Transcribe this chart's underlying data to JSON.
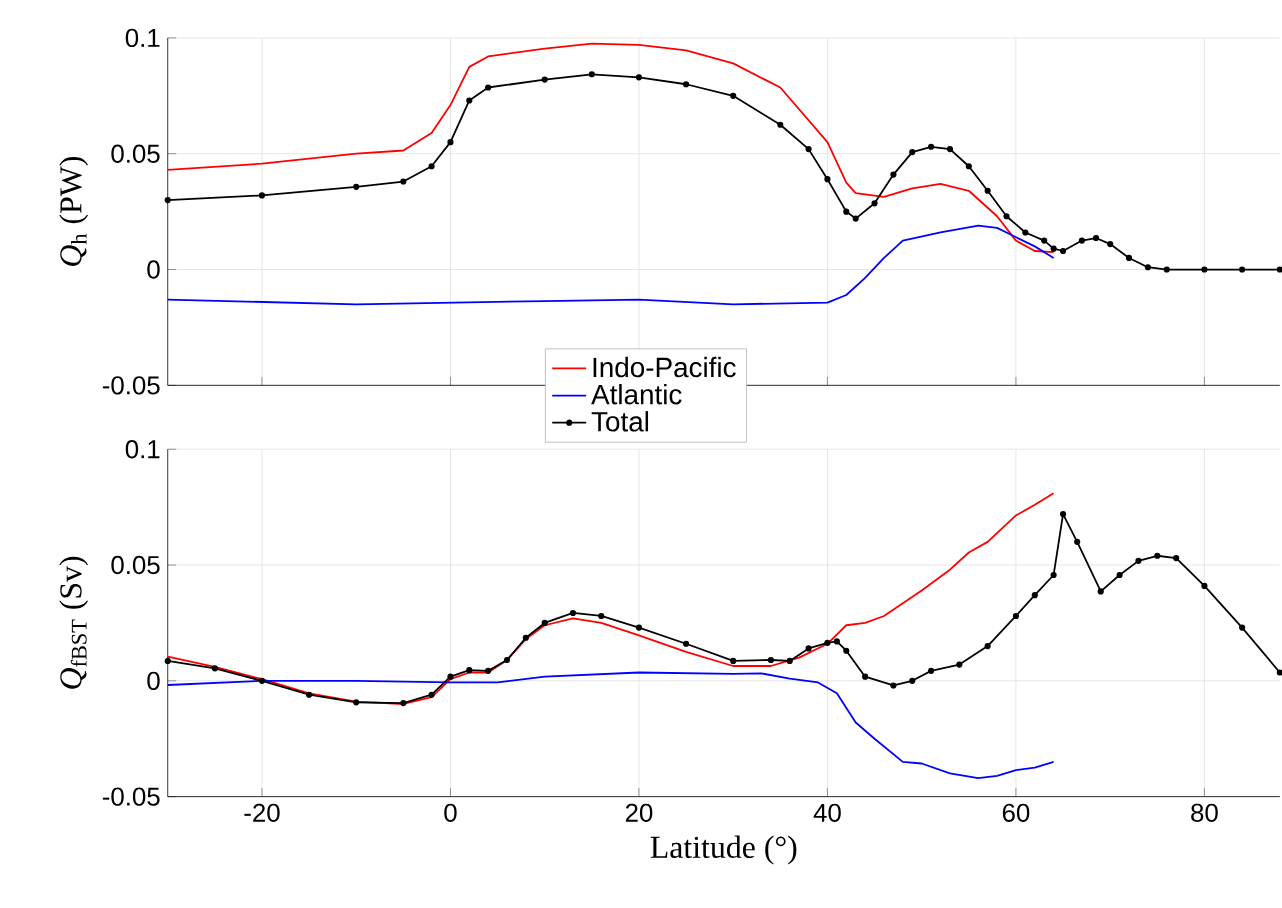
{
  "chart_data": [
    {
      "type": "line",
      "ylabel": "*Q*$_{h}$ (PW)",
      "xlim": [
        -30,
        88
      ],
      "xticks": [
        -20,
        0,
        20,
        40,
        60,
        80
      ],
      "ylim": [
        -0.05,
        0.1
      ],
      "yticks": [
        -0.05,
        0,
        0.05,
        0.1
      ],
      "grid": true,
      "tick_labels": "y",
      "line_style": "solid",
      "series": [
        {
          "color": "#ff0000",
          "marker": "none",
          "x": [
            -30,
            -20,
            -10,
            -5,
            -2,
            0,
            2,
            4,
            10,
            15,
            20,
            25,
            30,
            35,
            40,
            42,
            43,
            46,
            49,
            52,
            55,
            58,
            60,
            62,
            64
          ],
          "values": [
            0.043,
            0.0457,
            0.05,
            0.0514,
            0.059,
            0.071,
            0.0875,
            0.092,
            0.0954,
            0.0975,
            0.097,
            0.0946,
            0.089,
            0.0786,
            0.055,
            0.0375,
            0.033,
            0.0314,
            0.035,
            0.037,
            0.034,
            0.023,
            0.0125,
            0.008,
            0.0075
          ]
        },
        {
          "color": "#0000ff",
          "marker": "none",
          "x": [
            -30,
            -10,
            10,
            20,
            30,
            40,
            42,
            44,
            46,
            48,
            52,
            56,
            58,
            60,
            62,
            64
          ],
          "values": [
            -0.013,
            -0.015,
            -0.0136,
            -0.013,
            -0.015,
            -0.0143,
            -0.011,
            -0.0036,
            0.005,
            0.0125,
            0.016,
            0.019,
            0.018,
            0.014,
            0.01,
            0.005
          ]
        },
        {
          "color": "#000000",
          "marker": "circle",
          "x": [
            -30,
            -20,
            -10,
            -5,
            -2,
            0,
            2,
            4,
            10,
            15,
            20,
            25,
            30,
            35,
            38,
            40,
            42,
            43,
            45,
            47,
            49,
            51,
            53,
            55,
            57,
            59,
            61,
            63,
            64,
            65,
            67,
            68.5,
            70,
            72,
            74,
            76,
            80,
            84,
            88
          ],
          "values": [
            0.03,
            0.032,
            0.0357,
            0.038,
            0.0446,
            0.055,
            0.073,
            0.0786,
            0.082,
            0.0843,
            0.083,
            0.08,
            0.075,
            0.0625,
            0.052,
            0.039,
            0.025,
            0.022,
            0.0286,
            0.041,
            0.0507,
            0.053,
            0.052,
            0.0446,
            0.034,
            0.023,
            0.016,
            0.0125,
            0.009,
            0.008,
            0.0125,
            0.0136,
            0.011,
            0.005,
            0.001,
            0,
            0,
            0,
            0
          ]
        }
      ]
    },
    {
      "type": "line",
      "xlabel": "Latitude (°)",
      "ylabel": "*Q*$_{fBST}$ (Sv)",
      "xlim": [
        -30,
        88
      ],
      "xticks": [
        -20,
        0,
        20,
        40,
        60,
        80
      ],
      "ylim": [
        -0.05,
        0.1
      ],
      "yticks": [
        -0.05,
        0,
        0.05,
        0.1
      ],
      "grid": true,
      "legend": "top",
      "line_style": "solid",
      "series": [
        {
          "name": "Indo-Pacific",
          "color": "#ff0000",
          "marker": "none",
          "x": [
            -30,
            -25,
            -20,
            -15,
            -10,
            -5,
            -2,
            0,
            2,
            4,
            6,
            8,
            10,
            13,
            16,
            20,
            25,
            30,
            34,
            37,
            40,
            42,
            44,
            46,
            50,
            53,
            55,
            57,
            60,
            62,
            64
          ],
          "values": [
            0.0104,
            0.006,
            0.0007,
            -0.0054,
            -0.009,
            -0.01,
            -0.007,
            0.0007,
            0.0036,
            0.0036,
            0.009,
            0.018,
            0.024,
            0.027,
            0.025,
            0.0196,
            0.0125,
            0.0064,
            0.0064,
            0.01,
            0.016,
            0.024,
            0.025,
            0.028,
            0.039,
            0.048,
            0.0554,
            0.06,
            0.0714,
            0.076,
            0.081
          ]
        },
        {
          "name": "Atlantic",
          "color": "#0000ff",
          "marker": "none",
          "x": [
            -30,
            -20,
            -10,
            0,
            5,
            10,
            20,
            30,
            33,
            36,
            39,
            41,
            43,
            45,
            48,
            50,
            53,
            56,
            58,
            60,
            62,
            64
          ],
          "values": [
            -0.0018,
            0,
            0,
            -0.0007,
            -0.0007,
            0.0018,
            0.0036,
            0.003,
            0.0032,
            0.001,
            -0.0007,
            -0.0054,
            -0.018,
            -0.025,
            -0.035,
            -0.0357,
            -0.04,
            -0.042,
            -0.041,
            -0.0386,
            -0.0375,
            -0.035
          ]
        },
        {
          "name": "Total",
          "color": "#000000",
          "marker": "circle",
          "x": [
            -30,
            -25,
            -20,
            -15,
            -10,
            -5,
            -2,
            0,
            2,
            4,
            6,
            8,
            10,
            13,
            16,
            20,
            25,
            30,
            34,
            36,
            38,
            40,
            41,
            42,
            44,
            47,
            49,
            51,
            54,
            57,
            60,
            62,
            64,
            65,
            66.5,
            69,
            71,
            73,
            75,
            77,
            80,
            84,
            88
          ],
          "values": [
            0.0086,
            0.0054,
            0,
            -0.006,
            -0.0093,
            -0.0096,
            -0.006,
            0.0018,
            0.0046,
            0.0043,
            0.009,
            0.0186,
            0.025,
            0.0293,
            0.028,
            0.023,
            0.016,
            0.0086,
            0.009,
            0.0086,
            0.014,
            0.0164,
            0.017,
            0.013,
            0.0018,
            -0.002,
            0,
            0.0043,
            0.007,
            0.015,
            0.028,
            0.037,
            0.0457,
            0.072,
            0.06,
            0.0386,
            0.0457,
            0.0518,
            0.054,
            0.053,
            0.041,
            0.023,
            0.0036
          ]
        }
      ]
    }
  ]
}
